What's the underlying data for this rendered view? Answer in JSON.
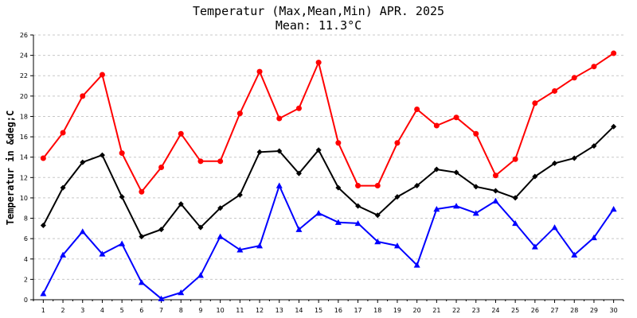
{
  "chart_data": {
    "type": "line",
    "title": "Temperatur (Max,Mean,Min) APR. 2025",
    "subtitle": "Mean: 11.3°C",
    "xlabel": "",
    "ylabel": "Temperatur in &deg;C",
    "ylim": [
      0,
      26
    ],
    "yticks": [
      0,
      2,
      4,
      6,
      8,
      10,
      12,
      14,
      16,
      18,
      20,
      22,
      24,
      26
    ],
    "x": [
      1,
      2,
      3,
      4,
      5,
      6,
      7,
      8,
      9,
      10,
      11,
      12,
      13,
      14,
      15,
      16,
      17,
      18,
      19,
      20,
      21,
      22,
      23,
      24,
      25,
      26,
      27,
      28,
      29,
      30
    ],
    "grid": true,
    "series": [
      {
        "name": "",
        "color": "#ff0000",
        "marker": "circle",
        "values": [
          13.9,
          16.4,
          20.0,
          22.1,
          14.4,
          10.6,
          13.0,
          16.3,
          13.6,
          13.6,
          18.3,
          22.4,
          17.8,
          18.8,
          23.3,
          15.4,
          11.2,
          11.2,
          15.4,
          18.7,
          17.1,
          17.9,
          16.3,
          12.2,
          13.8,
          19.3,
          20.5,
          21.8,
          22.9,
          24.2
        ]
      },
      {
        "name": "",
        "color": "#000000",
        "marker": "diamond",
        "values": [
          7.3,
          11.0,
          13.5,
          14.2,
          10.1,
          6.2,
          6.9,
          9.4,
          7.1,
          9.0,
          10.3,
          14.5,
          14.6,
          12.4,
          14.7,
          11.0,
          9.2,
          8.3,
          10.1,
          11.2,
          12.8,
          12.5,
          11.1,
          10.7,
          10.0,
          12.1,
          13.4,
          13.9,
          15.1,
          17.0
        ]
      },
      {
        "name": "",
        "color": "#0000ff",
        "marker": "triangle",
        "values": [
          0.6,
          4.4,
          6.7,
          4.5,
          5.5,
          1.7,
          0.1,
          0.7,
          2.4,
          6.2,
          4.9,
          5.3,
          11.2,
          6.9,
          8.5,
          7.6,
          7.5,
          5.7,
          5.3,
          3.4,
          8.9,
          9.2,
          8.5,
          9.7,
          7.5,
          5.2,
          7.1,
          4.4,
          6.1,
          8.9
        ]
      }
    ]
  }
}
